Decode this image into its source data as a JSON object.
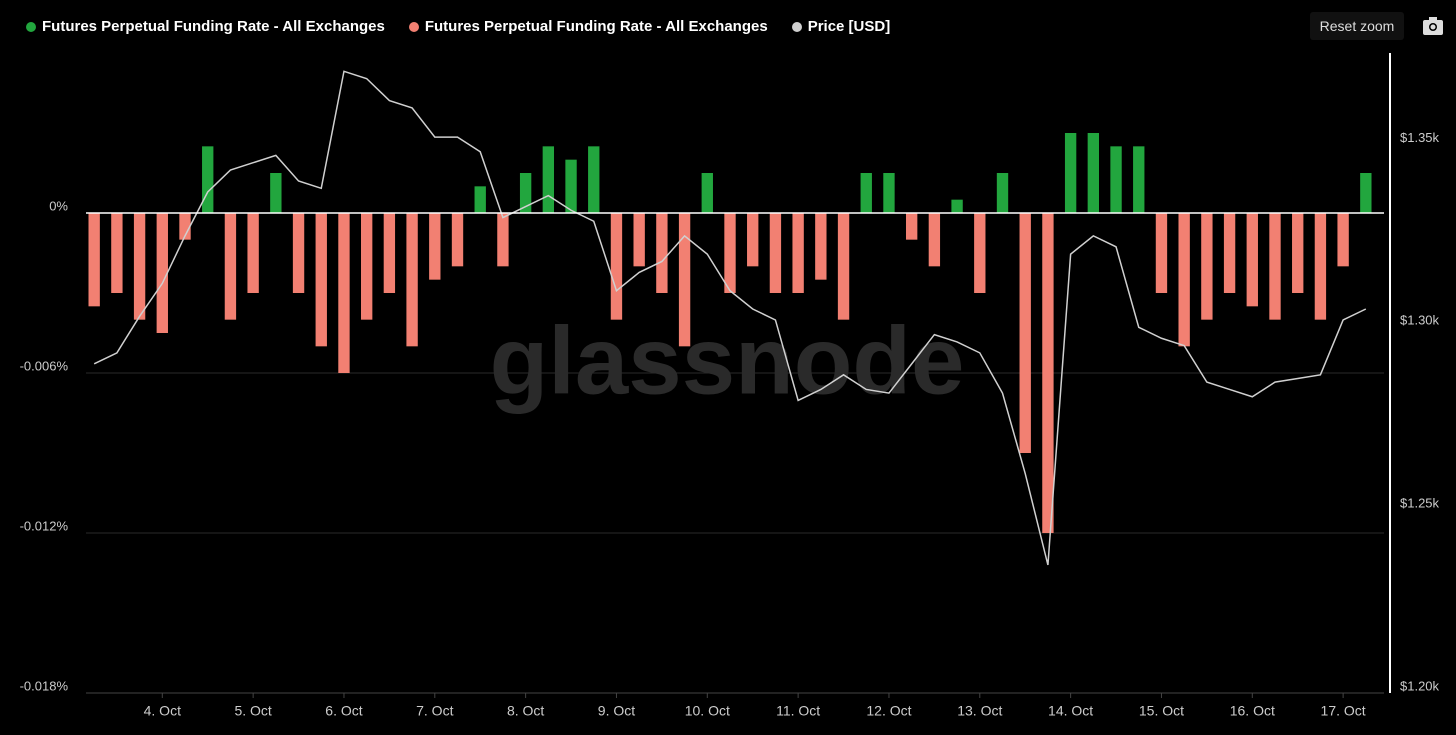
{
  "chart_data": {
    "type": "combo",
    "watermark": "glassnode",
    "x": [
      3.25,
      3.5,
      3.75,
      4,
      4.25,
      4.5,
      4.75,
      5,
      5.25,
      5.5,
      5.75,
      6,
      6.25,
      6.5,
      6.75,
      7,
      7.25,
      7.5,
      7.75,
      8,
      8.25,
      8.5,
      8.75,
      9,
      9.25,
      9.5,
      9.75,
      10,
      10.25,
      10.5,
      10.75,
      11,
      11.25,
      11.5,
      11.75,
      12,
      12.25,
      12.5,
      12.75,
      13,
      13.25,
      13.5,
      13.75,
      14,
      14.25,
      14.5,
      14.75,
      15,
      15.25,
      15.5,
      15.75,
      16,
      16.25,
      16.5,
      16.75,
      17,
      17.25
    ],
    "xlim": [
      3.16,
      17.45
    ],
    "xticks": [
      {
        "value": 4,
        "label": "4. Oct"
      },
      {
        "value": 5,
        "label": "5. Oct"
      },
      {
        "value": 6,
        "label": "6. Oct"
      },
      {
        "value": 7,
        "label": "7. Oct"
      },
      {
        "value": 8,
        "label": "8. Oct"
      },
      {
        "value": 9,
        "label": "9. Oct"
      },
      {
        "value": 10,
        "label": "10. Oct"
      },
      {
        "value": 11,
        "label": "11. Oct"
      },
      {
        "value": 12,
        "label": "12. Oct"
      },
      {
        "value": 13,
        "label": "13. Oct"
      },
      {
        "value": 14,
        "label": "14. Oct"
      },
      {
        "value": 15,
        "label": "15. Oct"
      },
      {
        "value": 16,
        "label": "16. Oct"
      },
      {
        "value": 17,
        "label": "17. Oct"
      }
    ],
    "ylim": [
      -0.018,
      0.006
    ],
    "yticks": [
      {
        "value": 0,
        "label": "0%"
      },
      {
        "value": -0.006,
        "label": "-0.006%"
      },
      {
        "value": -0.012,
        "label": "-0.012%"
      },
      {
        "value": -0.018,
        "label": "-0.018%"
      }
    ],
    "y2lim": [
      1200,
      1375
    ],
    "y2ticks": [
      {
        "value": 1200,
        "label": "$1.20k"
      },
      {
        "value": 1250,
        "label": "$1.25k"
      },
      {
        "value": 1300,
        "label": "$1.30k"
      },
      {
        "value": 1350,
        "label": "$1.35k"
      }
    ],
    "grid": true,
    "series": [
      {
        "name": "Futures Perpetual Funding Rate - All Exchanges",
        "type": "bar",
        "color": "#22a63e",
        "values": [
          null,
          null,
          null,
          null,
          null,
          0.0025,
          null,
          null,
          0.0015,
          null,
          null,
          null,
          null,
          null,
          null,
          null,
          null,
          0.001,
          null,
          0.0015,
          0.0025,
          0.002,
          0.0025,
          null,
          null,
          null,
          null,
          0.0015,
          null,
          null,
          null,
          null,
          null,
          null,
          0.0015,
          0.0015,
          null,
          null,
          0.0005,
          null,
          0.0015,
          null,
          null,
          0.003,
          0.003,
          0.0025,
          0.0025,
          null,
          null,
          null,
          null,
          null,
          null,
          null,
          null,
          null,
          0.0015
        ]
      },
      {
        "name": "Futures Perpetual Funding Rate - All Exchanges",
        "type": "bar",
        "color": "#f28072",
        "values": [
          -0.0035,
          -0.003,
          -0.004,
          -0.0045,
          -0.001,
          null,
          -0.004,
          -0.003,
          null,
          -0.003,
          -0.005,
          -0.006,
          -0.004,
          -0.003,
          -0.005,
          -0.0025,
          -0.002,
          null,
          -0.002,
          null,
          null,
          null,
          null,
          -0.004,
          -0.002,
          -0.003,
          -0.005,
          null,
          -0.003,
          -0.002,
          -0.003,
          -0.003,
          -0.0025,
          -0.004,
          null,
          null,
          -0.001,
          -0.002,
          null,
          -0.003,
          null,
          -0.009,
          -0.012,
          null,
          null,
          null,
          null,
          -0.003,
          -0.005,
          -0.004,
          -0.003,
          -0.0035,
          -0.004,
          -0.003,
          -0.004,
          -0.002,
          null
        ]
      },
      {
        "name": "Price [USD]",
        "type": "line",
        "axis": "y2",
        "color": "#d0d0d0",
        "values": [
          1290,
          1293,
          1303,
          1312,
          1325,
          1337,
          1343,
          1345,
          1347,
          1340,
          1338,
          1370,
          1368,
          1362,
          1360,
          1352,
          1352,
          1348,
          1330,
          1333,
          1336,
          1332,
          1329,
          1310,
          1315,
          1318,
          1325,
          1320,
          1310,
          1305,
          1302,
          1280,
          1283,
          1287,
          1283,
          1282,
          1290,
          1298,
          1296,
          1293,
          1282,
          1260,
          1235,
          1320,
          1325,
          1322,
          1300,
          1297,
          1295,
          1285,
          1283,
          1281,
          1285,
          1286,
          1287,
          1302,
          1305
        ]
      }
    ]
  },
  "controls": {
    "reset_zoom": "Reset zoom"
  }
}
